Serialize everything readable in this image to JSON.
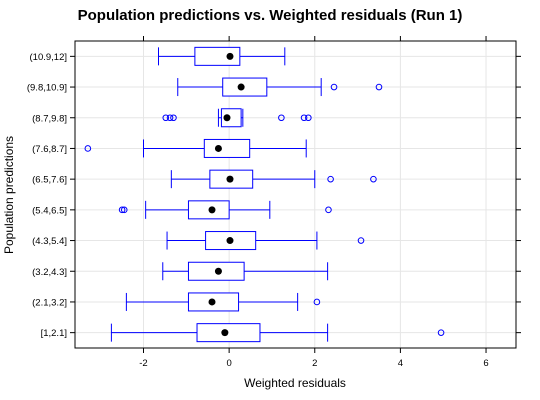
{
  "chart_data": {
    "type": "box",
    "orientation": "horizontal",
    "title": "Population predictions vs. Weighted residuals (Run 1)",
    "xlabel": "Weighted residuals",
    "ylabel": "Population predictions",
    "xlim": [
      -3.6,
      6.7
    ],
    "xticks": [
      -2,
      0,
      2,
      4,
      6
    ],
    "grid": true,
    "categories": [
      "[1,2.1]",
      "(2.1,3.2]",
      "(3.2,4.3]",
      "(4.3,5.4]",
      "(5.4,6.5]",
      "(6.5,7.6]",
      "(7.6,8.7]",
      "(8.7,9.8]",
      "(9.8,10.9]",
      "(10.9,12]"
    ],
    "boxes": [
      {
        "whisker_low": -2.75,
        "q1": -0.75,
        "median": -0.1,
        "q3": 0.72,
        "whisker_high": 2.3,
        "outliers": [
          4.95
        ]
      },
      {
        "whisker_low": -2.4,
        "q1": -0.95,
        "median": -0.4,
        "q3": 0.22,
        "whisker_high": 1.6,
        "outliers": [
          2.05
        ]
      },
      {
        "whisker_low": -1.55,
        "q1": -0.95,
        "median": -0.25,
        "q3": 0.35,
        "whisker_high": 2.3,
        "outliers": []
      },
      {
        "whisker_low": -1.45,
        "q1": -0.55,
        "median": 0.02,
        "q3": 0.62,
        "whisker_high": 2.05,
        "outliers": [
          3.08
        ]
      },
      {
        "whisker_low": -1.95,
        "q1": -0.95,
        "median": -0.4,
        "q3": 0.0,
        "whisker_high": 0.95,
        "outliers": [
          -2.5,
          -2.45,
          2.32
        ]
      },
      {
        "whisker_low": -1.35,
        "q1": -0.45,
        "median": 0.02,
        "q3": 0.55,
        "whisker_high": 2.0,
        "outliers": [
          2.37,
          3.37
        ]
      },
      {
        "whisker_low": -2.0,
        "q1": -0.58,
        "median": -0.25,
        "q3": 0.48,
        "whisker_high": 1.8,
        "outliers": [
          -3.3
        ]
      },
      {
        "whisker_low": -0.25,
        "q1": -0.18,
        "median": -0.05,
        "q3": 0.28,
        "whisker_high": 0.32,
        "outliers": [
          -1.48,
          -1.38,
          -1.3,
          1.22,
          1.75,
          1.85
        ]
      },
      {
        "whisker_low": -1.2,
        "q1": -0.15,
        "median": 0.28,
        "q3": 0.88,
        "whisker_high": 2.15,
        "outliers": [
          2.45,
          3.5
        ]
      },
      {
        "whisker_low": -1.65,
        "q1": -0.8,
        "median": 0.02,
        "q3": 0.25,
        "whisker_high": 1.3,
        "outliers": []
      }
    ],
    "colors": {
      "box": "#0000ff",
      "median": "#000000",
      "grid": "#e6e6e6",
      "frame": "#000000"
    }
  }
}
